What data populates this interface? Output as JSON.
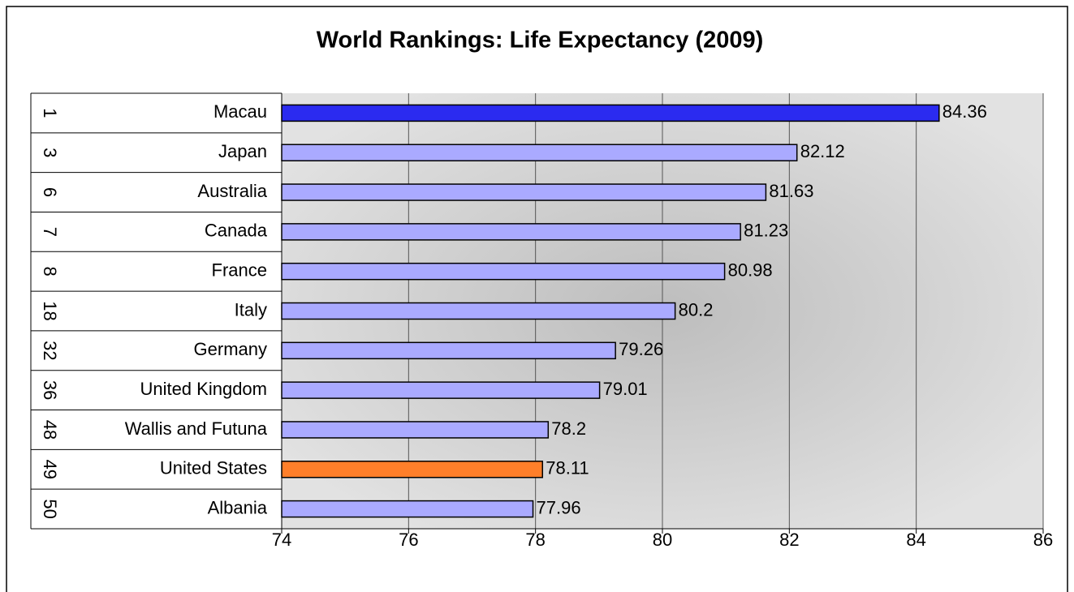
{
  "chart_data": {
    "type": "bar",
    "orientation": "horizontal",
    "title": "World Rankings: Life Expectancy (2009)",
    "ranks": [
      1,
      3,
      6,
      7,
      8,
      18,
      32,
      36,
      48,
      49,
      50
    ],
    "categories": [
      "Macau",
      "Japan",
      "Australia",
      "Canada",
      "France",
      "Italy",
      "Germany",
      "United Kingdom",
      "Wallis and Futuna",
      "United States",
      "Albania"
    ],
    "values": [
      84.36,
      82.12,
      81.63,
      81.23,
      80.98,
      80.2,
      79.26,
      79.01,
      78.2,
      78.11,
      77.96
    ],
    "colors": [
      "#2b2bf0",
      "#aaaaff",
      "#aaaaff",
      "#aaaaff",
      "#aaaaff",
      "#aaaaff",
      "#aaaaff",
      "#aaaaff",
      "#aaaaff",
      "#ff7f2a",
      "#aaaaff"
    ],
    "xlim": [
      74,
      86
    ],
    "xticks": [
      74,
      76,
      78,
      80,
      82,
      84,
      86
    ],
    "grid": true
  }
}
